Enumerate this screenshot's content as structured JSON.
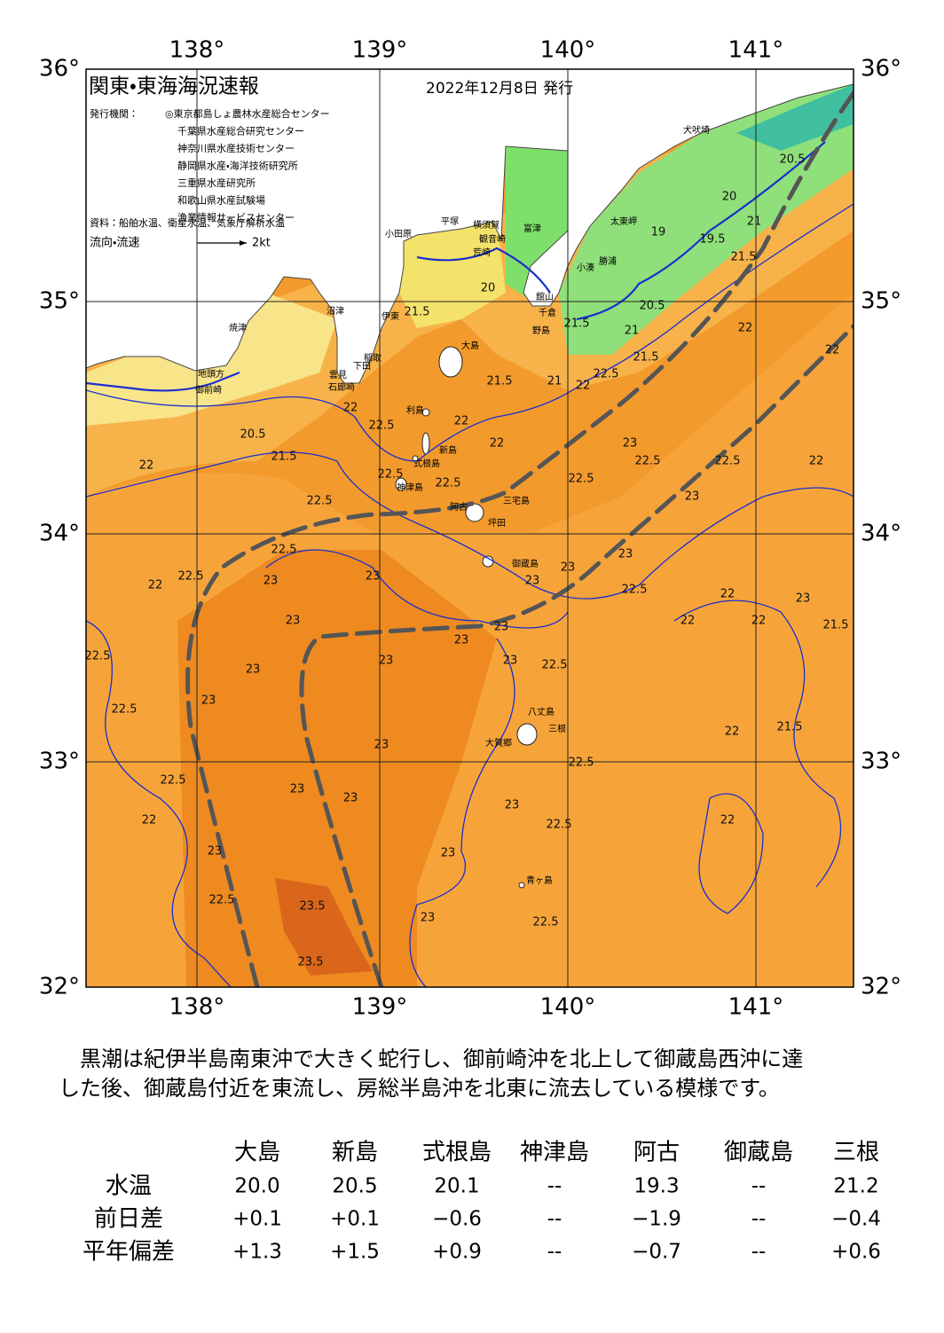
{
  "map": {
    "title": "関東・東海海況速報",
    "date": "2022年12月8日 発行",
    "issuer_label": "発行機関：",
    "issuers": [
      "◎東京都島しょ農林水産総合センター",
      "千葉県水産総合研究センター",
      "神奈川県水産技術センター",
      "静岡県水産・海洋技術研究所",
      "三重県水産研究所",
      "和歌山県水産試験場",
      "漁業情報サービスセンター"
    ],
    "source": "資料：船舶水温、衛星水温、気象庁解析水温",
    "legend": {
      "label": "流向・流速",
      "scale": "2kt"
    },
    "longitudes": [
      "138°",
      "139°",
      "140°",
      "141°"
    ],
    "latitudes": [
      "36°",
      "35°",
      "34°",
      "33°",
      "32°"
    ],
    "places": [
      "大島",
      "新島",
      "利島",
      "式根島",
      "神津島",
      "三宅島",
      "坪田",
      "阿古",
      "御蔵島",
      "八丈島",
      "三根",
      "大賀郷",
      "青ヶ島",
      "小田原",
      "平塚",
      "横須賀",
      "観音崎",
      "荒崎",
      "富津",
      "館山",
      "千倉",
      "野島",
      "小湊",
      "勝浦",
      "太東岬",
      "犬吠埼",
      "沼津",
      "伊東",
      "稲取",
      "下田",
      "雲見",
      "石廊崎",
      "焼津",
      "地頭方",
      "御前崎"
    ],
    "contour_labels": [
      "21.5",
      "22",
      "22.5",
      "20.5",
      "21.5",
      "22",
      "22",
      "22",
      "22.5",
      "22.5",
      "23",
      "22.5",
      "22.5",
      "22.5",
      "23",
      "22.5",
      "22",
      "22.5",
      "22",
      "22.5",
      "23",
      "23",
      "23",
      "23",
      "23",
      "22.5",
      "23",
      "23",
      "23",
      "23",
      "22.5",
      "22.5",
      "23",
      "23",
      "22.5",
      "23",
      "23",
      "22.5",
      "22.5",
      "23",
      "23",
      "23",
      "22.5",
      "22",
      "23",
      "23",
      "22.5",
      "23.5",
      "23",
      "22.5",
      "23.5",
      "22",
      "22",
      "21.5",
      "22",
      "22",
      "22",
      "21.5",
      "20.5",
      "20",
      "19",
      "19.5",
      "21",
      "21.5",
      "22",
      "22",
      "20.5",
      "21",
      "21.5",
      "21.5",
      "22.5",
      "21",
      "22",
      "21.5",
      "20",
      "23"
    ]
  },
  "description": [
    "　黒潮は紀伊半島南東沖で大きく蛇行し、御前崎沖を北上して御蔵島西沖に達",
    "した後、御蔵島付近を東流し、房総半島沖を北東に流去している模様です。"
  ],
  "table": {
    "columns": [
      "大島",
      "新島",
      "式根島",
      "神津島",
      "阿古",
      "御蔵島",
      "三根"
    ],
    "rows": [
      {
        "label": "水温",
        "cells": [
          "20.0",
          "20.5",
          "20.1",
          "--",
          "19.3",
          "--",
          "21.2"
        ]
      },
      {
        "label": "前日差",
        "cells": [
          "+0.1",
          "+0.1",
          "−0.6",
          "--",
          "−1.9",
          "--",
          "−0.4"
        ]
      },
      {
        "label": "平年偏差",
        "cells": [
          "+1.3",
          "+1.5",
          "+0.9",
          "--",
          "−0.7",
          "--",
          "+0.6"
        ]
      }
    ]
  }
}
